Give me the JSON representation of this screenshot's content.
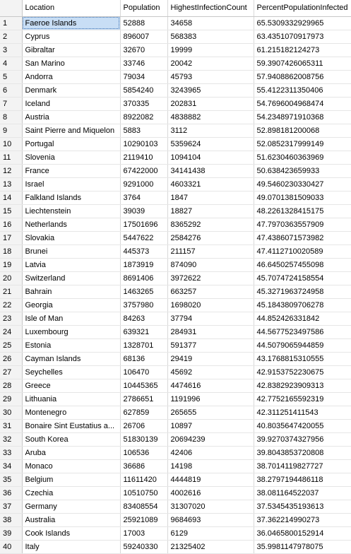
{
  "grid": {
    "columns": [
      "",
      "Location",
      "Population",
      "HighestInfectionCount",
      "PercentPopulationInfected"
    ],
    "selected_row": 0,
    "rows": [
      [
        "1",
        "Faeroe Islands",
        "52888",
        "34658",
        "65.5309332929965"
      ],
      [
        "2",
        "Cyprus",
        "896007",
        "568383",
        "63.4351070917973"
      ],
      [
        "3",
        "Gibraltar",
        "32670",
        "19999",
        "61.215182124273"
      ],
      [
        "4",
        "San Marino",
        "33746",
        "20042",
        "59.3907426065311"
      ],
      [
        "5",
        "Andorra",
        "79034",
        "45793",
        "57.9408862008756"
      ],
      [
        "6",
        "Denmark",
        "5854240",
        "3243965",
        "55.4122311350406"
      ],
      [
        "7",
        "Iceland",
        "370335",
        "202831",
        "54.7696004968474"
      ],
      [
        "8",
        "Austria",
        "8922082",
        "4838882",
        "54.2348971910368"
      ],
      [
        "9",
        "Saint Pierre and Miquelon",
        "5883",
        "3112",
        "52.898181200068"
      ],
      [
        "10",
        "Portugal",
        "10290103",
        "5359624",
        "52.0852317999149"
      ],
      [
        "11",
        "Slovenia",
        "2119410",
        "1094104",
        "51.6230460363969"
      ],
      [
        "12",
        "France",
        "67422000",
        "34141438",
        "50.638423659933"
      ],
      [
        "13",
        "Israel",
        "9291000",
        "4603321",
        "49.5460230330427"
      ],
      [
        "14",
        "Falkland Islands",
        "3764",
        "1847",
        "49.0701381509033"
      ],
      [
        "15",
        "Liechtenstein",
        "39039",
        "18827",
        "48.2261328415175"
      ],
      [
        "16",
        "Netherlands",
        "17501696",
        "8365292",
        "47.7970363557909"
      ],
      [
        "17",
        "Slovakia",
        "5447622",
        "2584276",
        "47.4386071573982"
      ],
      [
        "18",
        "Brunei",
        "445373",
        "211157",
        "47.4112710020589"
      ],
      [
        "19",
        "Latvia",
        "1873919",
        "874090",
        "46.6450257455098"
      ],
      [
        "20",
        "Switzerland",
        "8691406",
        "3972622",
        "45.7074724158554"
      ],
      [
        "21",
        "Bahrain",
        "1463265",
        "663257",
        "45.3271963724958"
      ],
      [
        "22",
        "Georgia",
        "3757980",
        "1698020",
        "45.1843809706278"
      ],
      [
        "23",
        "Isle of Man",
        "84263",
        "37794",
        "44.852426331842"
      ],
      [
        "24",
        "Luxembourg",
        "639321",
        "284931",
        "44.5677523497586"
      ],
      [
        "25",
        "Estonia",
        "1328701",
        "591377",
        "44.5079065944859"
      ],
      [
        "26",
        "Cayman Islands",
        "68136",
        "29419",
        "43.1768815310555"
      ],
      [
        "27",
        "Seychelles",
        "106470",
        "45692",
        "42.9153752230675"
      ],
      [
        "28",
        "Greece",
        "10445365",
        "4474616",
        "42.8382923909313"
      ],
      [
        "29",
        "Lithuania",
        "2786651",
        "1191996",
        "42.7752165592319"
      ],
      [
        "30",
        "Montenegro",
        "627859",
        "265655",
        "42.311251411543"
      ],
      [
        "31",
        "Bonaire Sint Eustatius a...",
        "26706",
        "10897",
        "40.8035647420055"
      ],
      [
        "32",
        "South Korea",
        "51830139",
        "20694239",
        "39.9270374327956"
      ],
      [
        "33",
        "Aruba",
        "106536",
        "42406",
        "39.8043853720808"
      ],
      [
        "34",
        "Monaco",
        "36686",
        "14198",
        "38.7014119827727"
      ],
      [
        "35",
        "Belgium",
        "11611420",
        "4444819",
        "38.2797194486118"
      ],
      [
        "36",
        "Czechia",
        "10510750",
        "4002616",
        "38.081164522037"
      ],
      [
        "37",
        "Germany",
        "83408554",
        "31307020",
        "37.5345435193613"
      ],
      [
        "38",
        "Australia",
        "25921089",
        "9684693",
        "37.362214990273"
      ],
      [
        "39",
        "Cook Islands",
        "17003",
        "6129",
        "36.0465800152914"
      ],
      [
        "40",
        "Italy",
        "59240330",
        "21325402",
        "35.9981147978075"
      ]
    ]
  }
}
